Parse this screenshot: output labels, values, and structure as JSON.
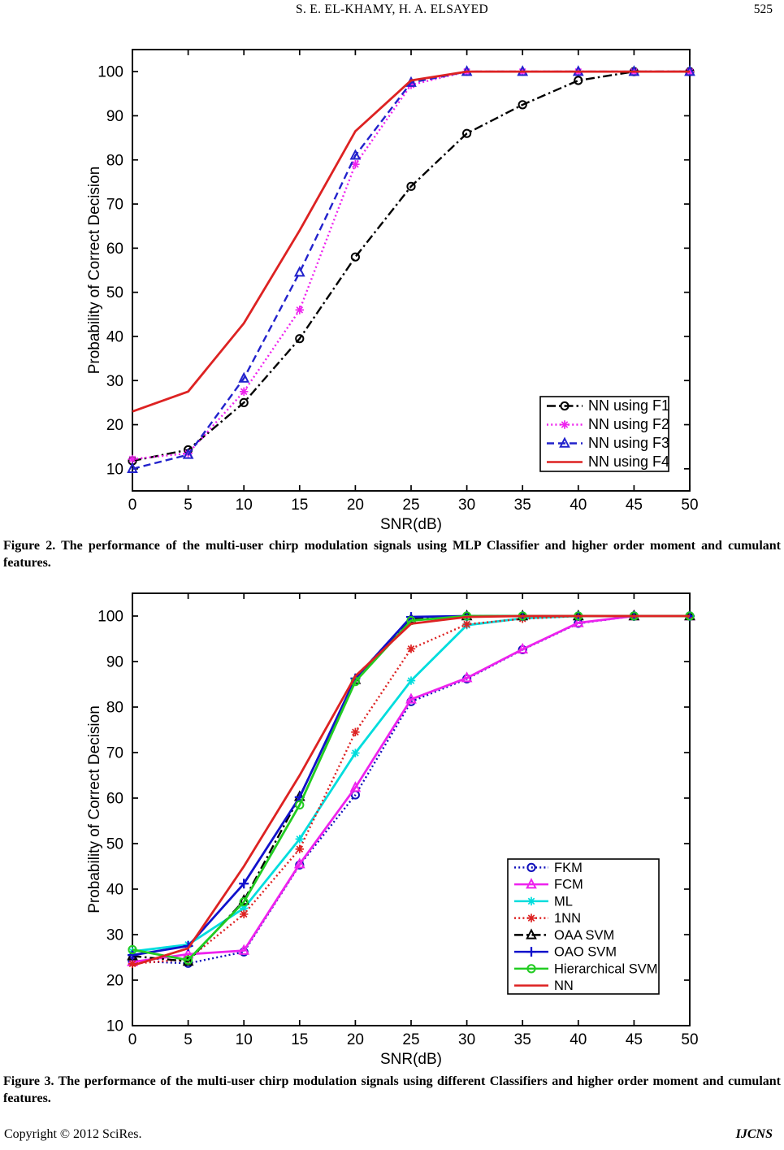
{
  "header": {
    "authors": "S. E. EL-KHAMY, H. A. ELSAYED",
    "page_number": "525"
  },
  "figures": [
    {
      "id": "figure2",
      "caption": "Figure 2. The performance of the multi-user chirp modulation signals using MLP Classifier and higher order moment and cumulant features."
    },
    {
      "id": "figure3",
      "caption": "Figure 3. The performance of the multi-user chirp modulation signals using different Classifiers and higher order moment and cumulant features."
    }
  ],
  "footer": {
    "copyright": "Copyright © 2012 SciRes.",
    "journal": "IJCNS"
  },
  "chart_data": [
    {
      "type": "line",
      "title": "",
      "xlabel": "SNR(dB)",
      "ylabel": "Probability of Correct Decision",
      "x": [
        0,
        5,
        10,
        15,
        20,
        25,
        30,
        35,
        40,
        45,
        50
      ],
      "xlim": [
        0,
        50
      ],
      "ylim": [
        5,
        105
      ],
      "xticks": [
        0,
        5,
        10,
        15,
        20,
        25,
        30,
        35,
        40,
        45,
        50
      ],
      "yticks": [
        10,
        20,
        30,
        40,
        50,
        60,
        70,
        80,
        90,
        100
      ],
      "grid": false,
      "legend_position": "inside-lower-right",
      "series": [
        {
          "name": "NN using F1",
          "color": "#000000",
          "line_style": "dashdot",
          "marker": "circle-open",
          "values": [
            11.8,
            14.3,
            25.0,
            39.5,
            58.0,
            74.0,
            86.0,
            92.5,
            98.0,
            100,
            100
          ]
        },
        {
          "name": "NN using F2",
          "color": "#ee22ee",
          "line_style": "dotted",
          "marker": "asterisk",
          "values": [
            12.2,
            13.5,
            27.5,
            46.0,
            79.0,
            97.0,
            100,
            100,
            100,
            100,
            100
          ]
        },
        {
          "name": "NN using F3",
          "color": "#2222cc",
          "line_style": "dashed",
          "marker": "triangle-open",
          "values": [
            10.0,
            13.2,
            30.5,
            54.5,
            81.0,
            97.5,
            100,
            100,
            100,
            100,
            100
          ]
        },
        {
          "name": "NN using F4",
          "color": "#dd2222",
          "line_style": "solid",
          "marker": "none",
          "values": [
            23.0,
            27.5,
            43.0,
            64.0,
            86.5,
            98.0,
            100,
            100,
            100,
            100,
            100
          ]
        }
      ]
    },
    {
      "type": "line",
      "title": "",
      "xlabel": "SNR(dB)",
      "ylabel": "Probability of Correct Decision",
      "x": [
        0,
        5,
        10,
        15,
        20,
        25,
        30,
        35,
        40,
        45,
        50
      ],
      "xlim": [
        0,
        50
      ],
      "ylim": [
        10,
        105
      ],
      "xticks": [
        0,
        5,
        10,
        15,
        20,
        25,
        30,
        35,
        40,
        45,
        50
      ],
      "yticks": [
        10,
        20,
        30,
        40,
        50,
        60,
        70,
        80,
        90,
        100
      ],
      "grid": false,
      "legend_position": "inside-right",
      "series": [
        {
          "name": "FKM",
          "color": "#1111bb",
          "line_style": "dotted",
          "marker": "circle-open",
          "values": [
            24.2,
            23.7,
            26.2,
            45.3,
            60.7,
            81.2,
            86.2,
            92.6,
            98.4,
            100,
            100
          ]
        },
        {
          "name": "FCM",
          "color": "#ee22ee",
          "line_style": "solid",
          "marker": "triangle-open",
          "values": [
            24.0,
            25.7,
            26.5,
            45.5,
            62.3,
            81.7,
            86.4,
            92.7,
            98.5,
            100,
            100
          ]
        },
        {
          "name": "ML",
          "color": "#00dddd",
          "line_style": "solid",
          "marker": "asterisk",
          "values": [
            26.3,
            27.8,
            35.8,
            51.0,
            69.9,
            85.8,
            98.0,
            99.5,
            100,
            100,
            100
          ]
        },
        {
          "name": "1NN",
          "color": "#dd2222",
          "line_style": "dotted",
          "marker": "asterisk",
          "values": [
            23.6,
            24.6,
            34.5,
            48.8,
            74.5,
            92.8,
            98.2,
            99.4,
            100,
            100,
            100
          ]
        },
        {
          "name": "OAA SVM",
          "color": "#000000",
          "line_style": "dashdot",
          "marker": "triangle-open",
          "values": [
            25.3,
            24.1,
            37.5,
            60.3,
            86.0,
            99.3,
            100,
            100,
            100,
            100,
            100
          ]
        },
        {
          "name": "OAO SVM",
          "color": "#1111cc",
          "line_style": "solid",
          "marker": "plus",
          "values": [
            25.5,
            27.5,
            41.2,
            60.2,
            86.3,
            99.8,
            100,
            100,
            100,
            100,
            100
          ]
        },
        {
          "name": "Hierarchical SVM",
          "color": "#22cc22",
          "line_style": "solid",
          "marker": "circle-open",
          "values": [
            26.7,
            24.4,
            37.2,
            58.5,
            85.6,
            99.0,
            100,
            100,
            100,
            100,
            100
          ]
        },
        {
          "name": "NN",
          "color": "#dd2222",
          "line_style": "solid",
          "marker": "none",
          "values": [
            23.2,
            27.0,
            45.0,
            65.0,
            86.8,
            98.3,
            99.8,
            100,
            100,
            100,
            100
          ]
        }
      ]
    }
  ]
}
